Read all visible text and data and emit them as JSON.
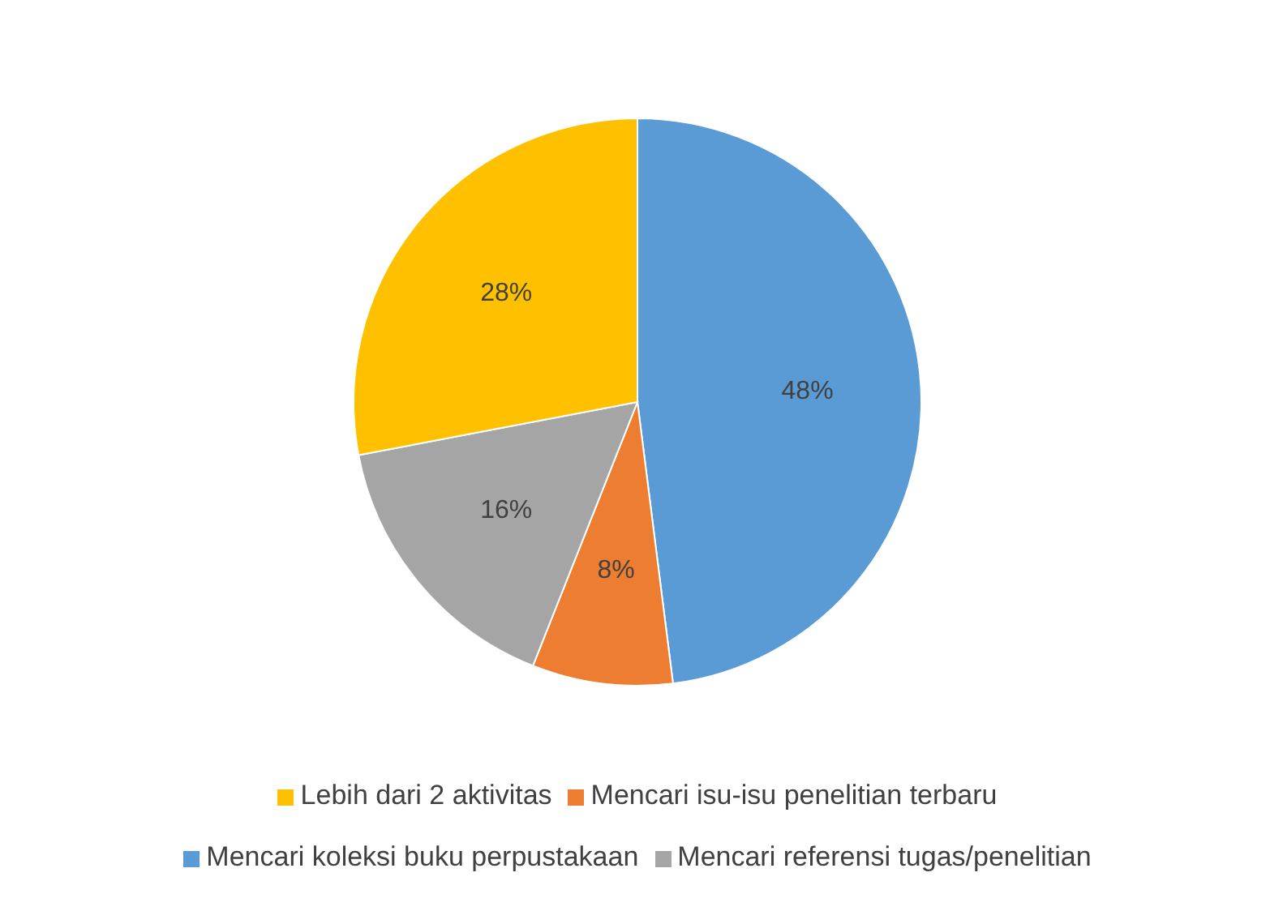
{
  "chart_data": {
    "type": "pie",
    "categories": [
      "Mencari koleksi buku perpustakaan",
      "Mencari isu-isu penelitian terbaru",
      "Mencari referensi tugas/penelitian",
      "Lebih dari 2 aktivitas"
    ],
    "values": [
      48,
      8,
      16,
      28
    ],
    "colors": [
      "#5b9bd5",
      "#ed7d31",
      "#a5a5a5",
      "#ffc000"
    ],
    "value_labels": [
      "48%",
      "8%",
      "16%",
      "28%"
    ],
    "legend": "bottom"
  }
}
